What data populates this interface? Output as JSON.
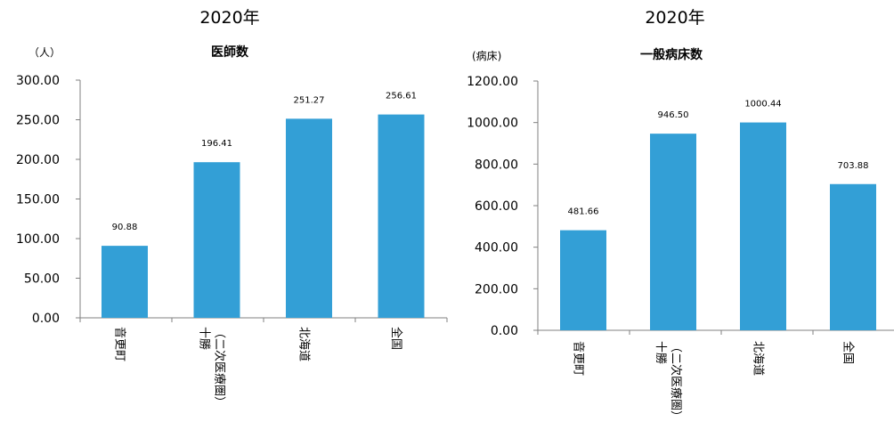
{
  "colors": {
    "bar": "#339fd6",
    "axis": "#808080"
  },
  "chart_data": [
    {
      "type": "bar",
      "year": "2020年",
      "unit": "（人）",
      "title": "医師数",
      "categories": [
        [
          "音更町"
        ],
        [
          "十勝",
          "（二次医療圏）"
        ],
        [
          "北海道"
        ],
        [
          "全国"
        ]
      ],
      "values": [
        90.88,
        196.41,
        251.27,
        256.61
      ],
      "value_labels": [
        "90.88",
        "196.41",
        "251.27",
        "256.61"
      ],
      "ylim": [
        0,
        300
      ],
      "yticks": [
        "0.00",
        "50.00",
        "100.00",
        "150.00",
        "200.00",
        "250.00",
        "300.00"
      ],
      "grid": false
    },
    {
      "type": "bar",
      "year": "2020年",
      "unit": "(病床)",
      "title": "一般病床数",
      "categories": [
        [
          "音更町"
        ],
        [
          "十勝",
          "（二次医療圏）"
        ],
        [
          "北海道"
        ],
        [
          "全国"
        ]
      ],
      "values": [
        481.66,
        946.5,
        1000.44,
        703.88
      ],
      "value_labels": [
        "481.66",
        "946.50",
        "1000.44",
        "703.88"
      ],
      "ylim": [
        0,
        1200
      ],
      "yticks": [
        "0.00",
        "200.00",
        "400.00",
        "600.00",
        "800.00",
        "1000.00",
        "1200.00"
      ],
      "grid": false
    }
  ]
}
